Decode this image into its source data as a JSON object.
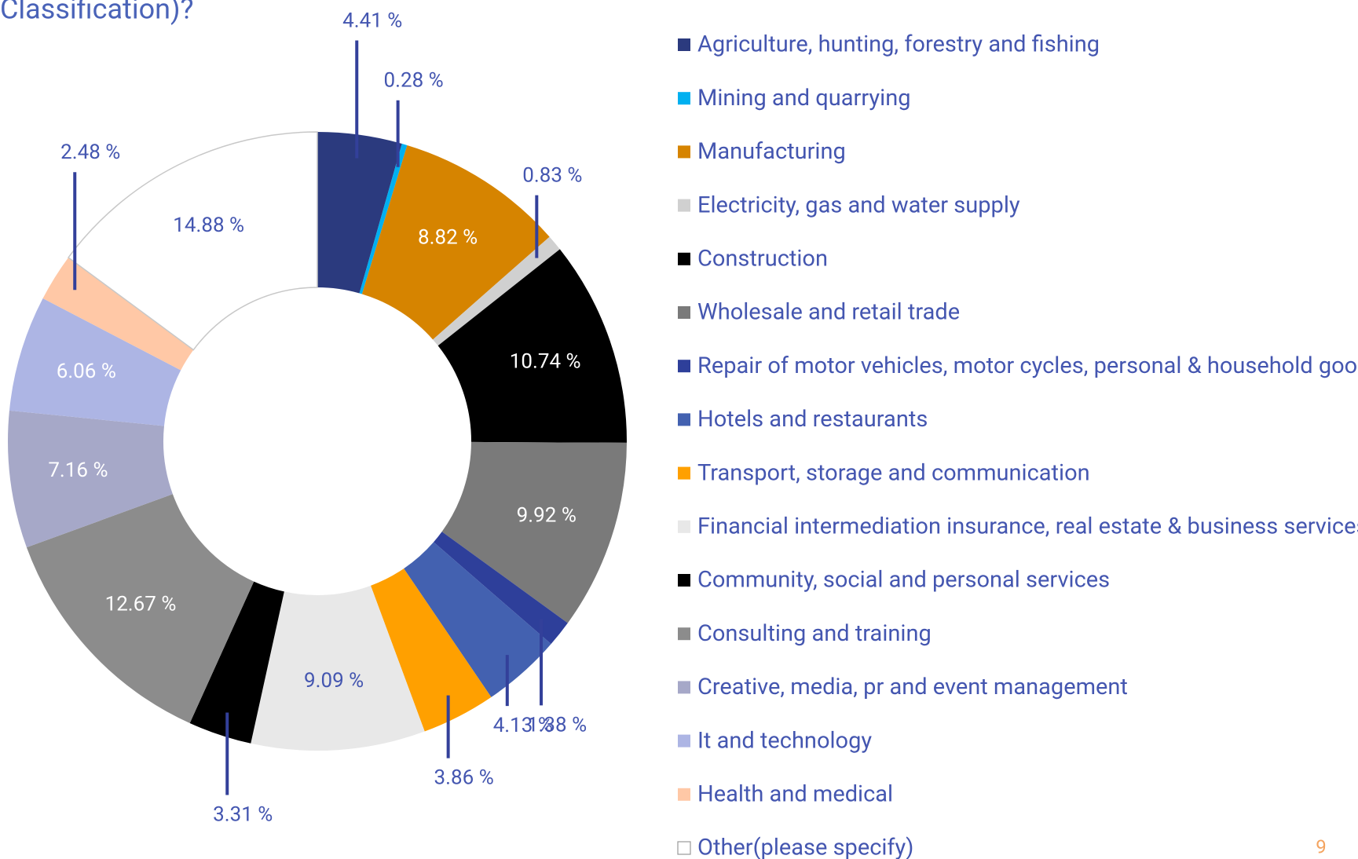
{
  "chart_data": {
    "type": "donut",
    "title": "Classification)?",
    "categories": [
      "Agriculture, hunting, forestry and fishing",
      "Mining and quarrying",
      "Manufacturing",
      "Electricity, gas and water supply",
      "Construction",
      "Wholesale and retail trade",
      "Repair of motor vehicles, motor cycles, personal & household goods",
      "Hotels and restaurants",
      "Transport, storage and communication",
      "Financial intermediation insurance, real estate & business services",
      "Community, social and personal services",
      "Consulting and training",
      "Creative, media, pr and event management",
      "It and technology",
      "Health and medical",
      "Other(please specify)"
    ],
    "values": [
      4.41,
      0.28,
      8.82,
      0.83,
      10.74,
      9.92,
      1.38,
      4.13,
      3.86,
      9.09,
      3.31,
      12.67,
      7.16,
      6.06,
      2.48,
      14.88
    ],
    "value_labels": [
      "4.41 %",
      "0.28 %",
      "8.82 %",
      "0.83 %",
      "10.74 %",
      "9.92 %",
      "1.38 %",
      "4.13 %",
      "3.86 %",
      "9.09 %",
      "3.31 %",
      "12.67 %",
      "7.16 %",
      "6.06 %",
      "2.48 %",
      "14.88 %"
    ],
    "colors": [
      "#2b3a7e",
      "#00b0f0",
      "#d68400",
      "#d0d0d0",
      "#000000",
      "#7a7a7a",
      "#2e3f9a",
      "#4361b0",
      "#ffa000",
      "#e8e8e8",
      "#000000",
      "#8c8c8c",
      "#a6a8c8",
      "#adb5e4",
      "#ffc8a6",
      "#ffffff"
    ],
    "legend": "right"
  },
  "page_number": "9"
}
